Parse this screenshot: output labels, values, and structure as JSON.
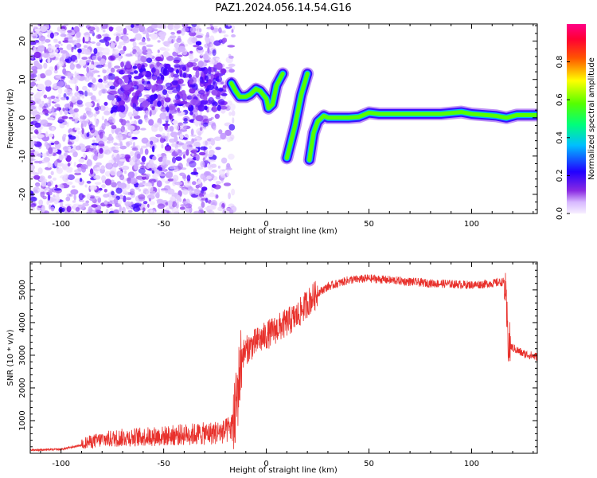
{
  "title": "PAZ1.2024.056.14.54.G16",
  "chart_data": [
    {
      "type": "heatmap",
      "xlabel": "Height of straight line (km)",
      "ylabel": "Frequency (Hz)",
      "xlim": [
        -115,
        132
      ],
      "ylim": [
        -25,
        24.5
      ],
      "xticks": [
        -100,
        -50,
        0,
        50,
        100
      ],
      "yticks": [
        -20,
        -10,
        0,
        10,
        20
      ],
      "colorbar": {
        "label": "Normalized spectral amplitude",
        "range": [
          0,
          1
        ],
        "ticks": [
          0.0,
          0.2,
          0.4,
          0.6,
          0.8
        ],
        "colormap": "hsv-purple-to-red"
      },
      "ridge": [
        {
          "x": -17,
          "y": 9.0
        },
        {
          "x": -15,
          "y": 7.0
        },
        {
          "x": -13,
          "y": 5.5
        },
        {
          "x": -10,
          "y": 5.5
        },
        {
          "x": -8,
          "y": 6.0
        },
        {
          "x": -5,
          "y": 7.5
        },
        {
          "x": -3,
          "y": 7.0
        },
        {
          "x": 0,
          "y": 5.0
        },
        {
          "x": 1,
          "y": 2.5
        },
        {
          "x": 3,
          "y": 3.5
        },
        {
          "x": 5,
          "y": 8.5
        },
        {
          "x": 8,
          "y": 11.5
        },
        {
          "x": 10,
          "y": -10.5
        },
        {
          "x": 14,
          "y": -2.0
        },
        {
          "x": 17,
          "y": 6.0
        },
        {
          "x": 20,
          "y": 11.5
        },
        {
          "x": 21,
          "y": -11.0
        },
        {
          "x": 23,
          "y": -4.0
        },
        {
          "x": 25,
          "y": -1.0
        },
        {
          "x": 28,
          "y": 0.5
        },
        {
          "x": 30,
          "y": 0.0
        },
        {
          "x": 35,
          "y": 0.0
        },
        {
          "x": 40,
          "y": 0.0
        },
        {
          "x": 45,
          "y": 0.2
        },
        {
          "x": 50,
          "y": 1.3
        },
        {
          "x": 55,
          "y": 1.0
        },
        {
          "x": 70,
          "y": 1.0
        },
        {
          "x": 85,
          "y": 1.0
        },
        {
          "x": 95,
          "y": 1.5
        },
        {
          "x": 100,
          "y": 1.0
        },
        {
          "x": 112,
          "y": 0.5
        },
        {
          "x": 117,
          "y": 0.0
        },
        {
          "x": 122,
          "y": 0.7
        },
        {
          "x": 132,
          "y": 0.7
        }
      ]
    },
    {
      "type": "line",
      "xlabel": "Height of straight line (km)",
      "ylabel": "SNR (10 * v/v)",
      "xlim": [
        -115,
        132
      ],
      "ylim": [
        0,
        5850
      ],
      "xticks": [
        -100,
        -50,
        0,
        50,
        100
      ],
      "yticks": [
        1000,
        2000,
        3000,
        4000,
        5000
      ],
      "color": "#e8312c",
      "trend": [
        {
          "x": -115,
          "y": 100
        },
        {
          "x": -100,
          "y": 120
        },
        {
          "x": -90,
          "y": 250
        },
        {
          "x": -80,
          "y": 350
        },
        {
          "x": -70,
          "y": 400
        },
        {
          "x": -60,
          "y": 420
        },
        {
          "x": -50,
          "y": 440
        },
        {
          "x": -40,
          "y": 480
        },
        {
          "x": -30,
          "y": 500
        },
        {
          "x": -20,
          "y": 550
        },
        {
          "x": -16,
          "y": 700
        },
        {
          "x": -12,
          "y": 3000
        },
        {
          "x": -9,
          "y": 3200
        },
        {
          "x": -5,
          "y": 3400
        },
        {
          "x": 0,
          "y": 3600
        },
        {
          "x": 5,
          "y": 3800
        },
        {
          "x": 10,
          "y": 4000
        },
        {
          "x": 15,
          "y": 4200
        },
        {
          "x": 20,
          "y": 4600
        },
        {
          "x": 25,
          "y": 4900
        },
        {
          "x": 30,
          "y": 5100
        },
        {
          "x": 40,
          "y": 5300
        },
        {
          "x": 50,
          "y": 5350
        },
        {
          "x": 60,
          "y": 5300
        },
        {
          "x": 70,
          "y": 5250
        },
        {
          "x": 80,
          "y": 5200
        },
        {
          "x": 90,
          "y": 5180
        },
        {
          "x": 100,
          "y": 5150
        },
        {
          "x": 110,
          "y": 5200
        },
        {
          "x": 116,
          "y": 5250
        },
        {
          "x": 118,
          "y": 3300
        },
        {
          "x": 125,
          "y": 3050
        },
        {
          "x": 132,
          "y": 2950
        }
      ]
    }
  ]
}
